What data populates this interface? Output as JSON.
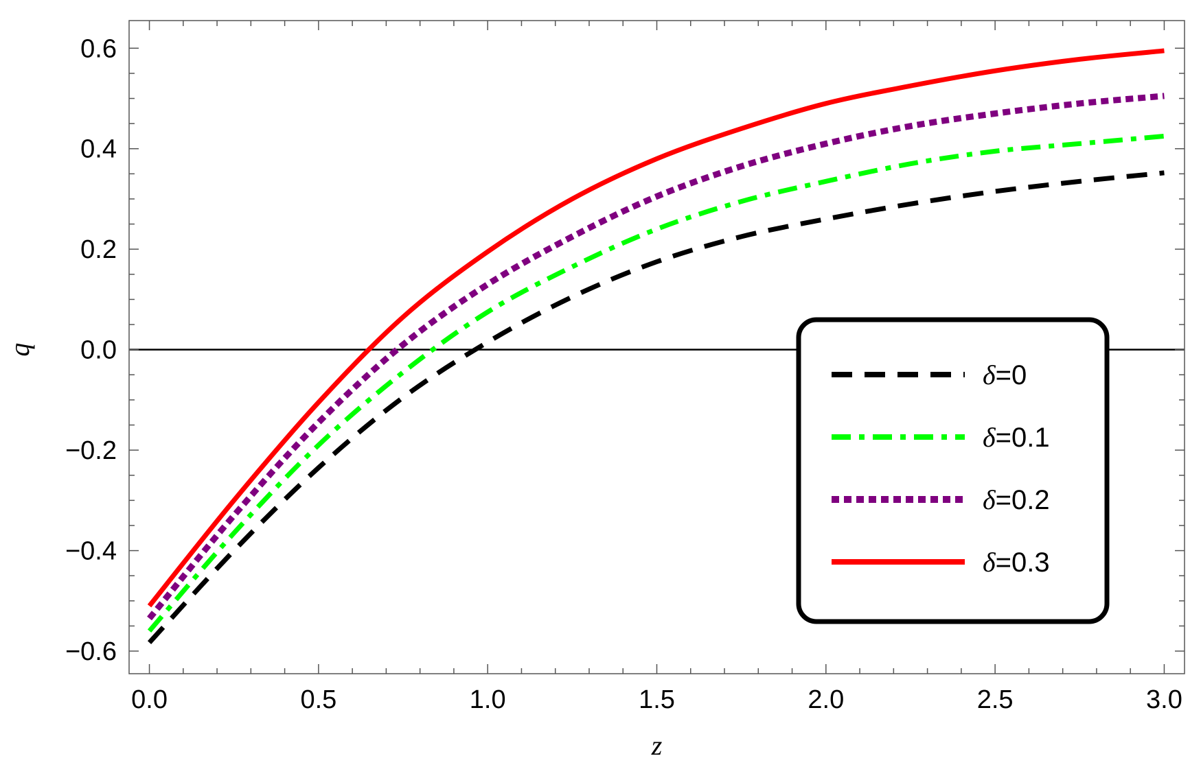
{
  "chart_data": {
    "type": "line",
    "title": "",
    "xlabel": "z",
    "ylabel": "q",
    "xlim": [
      -0.06,
      3.06
    ],
    "ylim": [
      -0.645,
      0.655
    ],
    "x_ticks": [
      0.0,
      0.5,
      1.0,
      1.5,
      2.0,
      2.5,
      3.0
    ],
    "x_tick_labels": [
      "0.0",
      "0.5",
      "1.0",
      "1.5",
      "2.0",
      "2.5",
      "3.0"
    ],
    "y_ticks": [
      -0.6,
      -0.4,
      -0.2,
      0.0,
      0.2,
      0.4,
      0.6
    ],
    "y_tick_labels": [
      "−0.6",
      "−0.4",
      "−0.2",
      "0.0",
      "0.2",
      "0.4",
      "0.6"
    ],
    "reference_line_y": 0.0,
    "grid": false,
    "legend_position": "right",
    "x": [
      0.0,
      0.25,
      0.5,
      0.75,
      1.0,
      1.25,
      1.5,
      1.75,
      2.0,
      2.25,
      2.5,
      2.75,
      3.0
    ],
    "series": [
      {
        "name": "δ=0",
        "legend_symbol": "δ",
        "legend_value": "=0",
        "color": "#000000",
        "style": "dashed",
        "values": [
          -0.583,
          -0.4,
          -0.235,
          -0.095,
          0.015,
          0.105,
          0.175,
          0.225,
          0.26,
          0.29,
          0.315,
          0.335,
          0.352
        ]
      },
      {
        "name": "δ=0.1",
        "legend_symbol": "δ",
        "legend_value": "=0.1",
        "color": "#00ff00",
        "style": "dashdot",
        "values": [
          -0.56,
          -0.365,
          -0.19,
          -0.045,
          0.075,
          0.165,
          0.24,
          0.295,
          0.335,
          0.37,
          0.395,
          0.41,
          0.425
        ]
      },
      {
        "name": "δ=0.2",
        "legend_symbol": "δ",
        "legend_value": "=0.2",
        "color": "#7f007f",
        "style": "dotted",
        "values": [
          -0.535,
          -0.33,
          -0.145,
          0.01,
          0.13,
          0.225,
          0.305,
          0.365,
          0.41,
          0.445,
          0.47,
          0.49,
          0.505
        ]
      },
      {
        "name": "δ=0.3",
        "legend_symbol": "δ",
        "legend_value": "=0.3",
        "color": "#ff0000",
        "style": "solid",
        "values": [
          -0.51,
          -0.3,
          -0.105,
          0.065,
          0.195,
          0.3,
          0.38,
          0.44,
          0.49,
          0.525,
          0.555,
          0.578,
          0.595
        ]
      }
    ]
  }
}
